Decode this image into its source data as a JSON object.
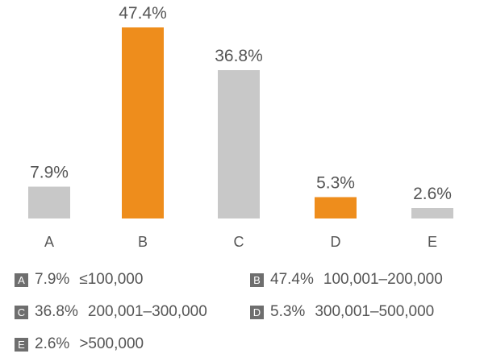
{
  "chart_data": {
    "type": "bar",
    "categories": [
      "A",
      "B",
      "C",
      "D",
      "E"
    ],
    "values": [
      7.9,
      47.4,
      36.8,
      5.3,
      2.6
    ],
    "value_labels": [
      "7.9%",
      "47.4%",
      "36.8%",
      "5.3%",
      "2.6%"
    ],
    "highlight_categories": [
      "B",
      "D"
    ],
    "title": "",
    "xlabel": "",
    "ylabel": "",
    "ylim": [
      0,
      50
    ],
    "grid": false,
    "colors": {
      "default": "#c8c8c8",
      "highlight": "#ee8d1c",
      "label": "#555555"
    }
  },
  "legend": [
    {
      "key": "A",
      "pct": "7.9%",
      "range": "≤100,000"
    },
    {
      "key": "B",
      "pct": "47.4%",
      "range": "100,001–200,000"
    },
    {
      "key": "C",
      "pct": "36.8%",
      "range": "200,001–300,000"
    },
    {
      "key": "D",
      "pct": "5.3%",
      "range": "300,001–500,000"
    },
    {
      "key": "E",
      "pct": "2.6%",
      "range": ">500,000"
    }
  ]
}
